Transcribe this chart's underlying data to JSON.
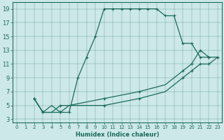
{
  "xlabel": "Humidex (Indice chaleur)",
  "ylabel": "",
  "bg_color": "#cde8e8",
  "line_color": "#1a6b5a",
  "xlim": [
    -0.5,
    23.5
  ],
  "ylim": [
    2.5,
    20
  ],
  "xticks": [
    0,
    1,
    2,
    3,
    4,
    5,
    6,
    7,
    8,
    9,
    10,
    11,
    12,
    13,
    14,
    15,
    16,
    17,
    18,
    19,
    20,
    21,
    22,
    23
  ],
  "yticks": [
    3,
    5,
    7,
    9,
    11,
    13,
    15,
    17,
    19
  ],
  "lines": [
    {
      "x": [
        2,
        3,
        4,
        5,
        6,
        7,
        8,
        9,
        10,
        11,
        12,
        13,
        14,
        15,
        16,
        17,
        18,
        19,
        20,
        21,
        22
      ],
      "y": [
        6,
        4,
        5,
        4,
        4,
        9,
        12,
        15,
        19,
        19,
        19,
        19,
        19,
        19,
        19,
        18,
        18,
        14,
        14,
        12,
        12
      ]
    },
    {
      "x": [
        2,
        3,
        4,
        5,
        6,
        10,
        14,
        17,
        18,
        19,
        20,
        21,
        22,
        23
      ],
      "y": [
        6,
        4,
        4,
        5,
        5,
        6,
        7,
        8,
        9,
        10,
        11,
        13,
        12,
        12
      ]
    },
    {
      "x": [
        2,
        3,
        4,
        5,
        6,
        10,
        14,
        17,
        18,
        19,
        20,
        21,
        22,
        23
      ],
      "y": [
        6,
        4,
        4,
        4,
        5,
        5,
        6,
        7,
        8,
        9,
        10,
        11,
        11,
        12
      ]
    }
  ],
  "marker_x": [
    [
      2,
      3,
      5,
      6,
      7,
      8,
      9,
      10,
      11,
      12,
      13,
      14,
      15,
      16,
      17,
      18,
      19,
      20,
      21,
      22
    ],
    [
      2,
      3,
      5,
      10,
      14,
      19,
      20,
      21,
      22,
      23
    ],
    [
      2,
      3,
      5,
      10,
      14,
      19,
      20,
      21,
      22,
      23
    ]
  ],
  "marker_y": [
    [
      6,
      4,
      4,
      4,
      9,
      12,
      15,
      19,
      19,
      19,
      19,
      19,
      19,
      19,
      18,
      18,
      14,
      14,
      12,
      12
    ],
    [
      6,
      4,
      5,
      6,
      7,
      10,
      11,
      13,
      12,
      12
    ],
    [
      6,
      4,
      4,
      5,
      6,
      9,
      10,
      11,
      11,
      12
    ]
  ]
}
